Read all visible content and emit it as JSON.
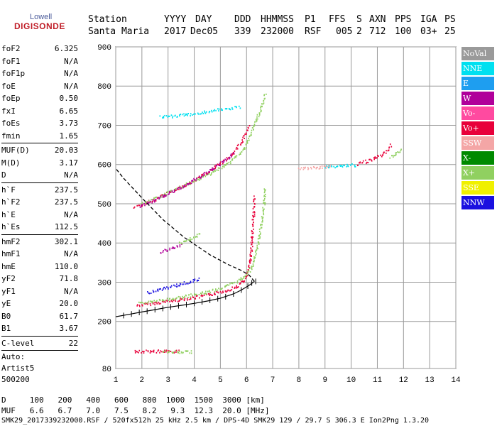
{
  "logo": {
    "brand": "Lowell",
    "product": "DIGISONDE"
  },
  "header": {
    "labels": [
      "Station",
      "YYYY",
      "DAY",
      "DDD",
      "HHMMSS",
      "P1",
      "FFS",
      "S",
      "AXN",
      "PPS",
      "IGA",
      "PS"
    ],
    "values": [
      "Santa Maria",
      "2017",
      "Dec05",
      "339",
      "232000",
      "RSF",
      "005",
      "2",
      "712",
      "100",
      "03+",
      "25"
    ]
  },
  "params_groups": [
    [
      [
        "foF2",
        "6.325"
      ],
      [
        "foF1",
        "N/A"
      ],
      [
        "foF1p",
        "N/A"
      ],
      [
        "foE",
        "N/A"
      ],
      [
        "foEp",
        "0.50"
      ],
      [
        "fxI",
        "6.65"
      ],
      [
        "foEs",
        "3.73"
      ],
      [
        "fmin",
        "1.65"
      ]
    ],
    [
      [
        "MUF(D)",
        "20.03"
      ],
      [
        "M(D)",
        "3.17"
      ],
      [
        "D",
        "N/A"
      ]
    ],
    [
      [
        "h`F",
        "237.5"
      ],
      [
        "h`F2",
        "237.5"
      ],
      [
        "h`E",
        "N/A"
      ],
      [
        "h`Es",
        "112.5"
      ]
    ],
    [
      [
        "hmF2",
        "302.1"
      ],
      [
        "hmF1",
        "N/A"
      ],
      [
        "hmE",
        "110.0"
      ],
      [
        "yF2",
        "71.8"
      ],
      [
        "yF1",
        "N/A"
      ],
      [
        "yE",
        "20.0"
      ],
      [
        "B0",
        "61.7"
      ],
      [
        "B1",
        "3.67"
      ]
    ],
    [
      [
        "C-level",
        "22"
      ]
    ]
  ],
  "auto": {
    "line1": "Auto:",
    "line2": "Artist5",
    "line3": "500200"
  },
  "legend": [
    {
      "label": "NoVal",
      "color": "#9a9a9a"
    },
    {
      "label": "NNE",
      "color": "#00e0f0"
    },
    {
      "label": "E",
      "color": "#1e9ef0"
    },
    {
      "label": "W",
      "color": "#b0009a"
    },
    {
      "label": "Vo-",
      "color": "#ff4aa0"
    },
    {
      "label": "Vo+",
      "color": "#e8003a"
    },
    {
      "label": "SSW",
      "color": "#f4a6a6"
    },
    {
      "label": "X-",
      "color": "#008a00"
    },
    {
      "label": "X+",
      "color": "#90d060"
    },
    {
      "label": "SSE",
      "color": "#f0f000"
    },
    {
      "label": "NNW",
      "color": "#1a10e0"
    }
  ],
  "footer": {
    "row1_label": "D",
    "row1_values": [
      "100",
      "200",
      "400",
      "600",
      "800",
      "1000",
      "1500",
      "3000"
    ],
    "row1_unit": "[km]",
    "row2_label": "MUF",
    "row2_values": [
      "6.6",
      "6.7",
      "7.0",
      "7.5",
      "8.2",
      "9.3",
      "12.3",
      "20.0"
    ],
    "row2_unit": "[MHz]",
    "info": "SMK29_2017339232000.RSF / 520fx512h 25 kHz 2.5 km / DPS-4D SMK29 129 / 29.7 S 306.3 E Ion2Png 1.3.20"
  },
  "chart_data": {
    "type": "scatter",
    "title": "",
    "xlabel": "",
    "ylabel": "",
    "xlim": [
      1,
      14
    ],
    "ylim": [
      80,
      900
    ],
    "x_ticks": [
      1,
      2,
      3,
      4,
      5,
      6,
      7,
      8,
      9,
      10,
      11,
      12,
      13,
      14
    ],
    "y_ticks": [
      80,
      200,
      300,
      400,
      500,
      600,
      700,
      800,
      900
    ],
    "grid": true,
    "series": [
      {
        "color": "#e8003a",
        "points": [
          [
            1.8,
            242
          ],
          [
            2.5,
            248
          ],
          [
            3.2,
            255
          ],
          [
            4,
            262
          ],
          [
            4.6,
            270
          ],
          [
            5.2,
            280
          ],
          [
            5.6,
            290
          ],
          [
            5.9,
            305
          ],
          [
            6.05,
            330
          ],
          [
            6.15,
            370
          ],
          [
            6.2,
            420
          ],
          [
            6.25,
            470
          ],
          [
            6.3,
            520
          ]
        ]
      },
      {
        "color": "#90d060",
        "points": [
          [
            1.9,
            248
          ],
          [
            2.8,
            256
          ],
          [
            3.6,
            264
          ],
          [
            4.4,
            275
          ],
          [
            5.2,
            290
          ],
          [
            5.8,
            310
          ],
          [
            6.2,
            340
          ],
          [
            6.4,
            390
          ],
          [
            6.55,
            450
          ],
          [
            6.65,
            500
          ],
          [
            6.7,
            540
          ]
        ]
      },
      {
        "color": "#1a10e0",
        "points": [
          [
            2.2,
            275
          ],
          [
            2.8,
            285
          ],
          [
            3.4,
            295
          ],
          [
            4.2,
            310
          ]
        ]
      },
      {
        "color": "#e8003a",
        "points": [
          [
            1.7,
            491
          ],
          [
            2.4,
            510
          ],
          [
            3.2,
            535
          ],
          [
            4,
            560
          ],
          [
            4.8,
            595
          ],
          [
            5.4,
            625
          ],
          [
            5.8,
            660
          ],
          [
            6.1,
            700
          ]
        ]
      },
      {
        "color": "#90d060",
        "points": [
          [
            2.0,
            500
          ],
          [
            3.0,
            530
          ],
          [
            4.2,
            565
          ],
          [
            5.2,
            600
          ],
          [
            5.9,
            640
          ],
          [
            6.4,
            720
          ],
          [
            6.7,
            780
          ]
        ]
      },
      {
        "color": "#b0009a",
        "points": [
          [
            1.9,
            495
          ],
          [
            2.8,
            520
          ],
          [
            3.8,
            555
          ],
          [
            4.7,
            590
          ],
          [
            5.5,
            630
          ]
        ]
      },
      {
        "color": "#00e0f0",
        "points": [
          [
            2.7,
            722
          ],
          [
            3.7,
            728
          ],
          [
            4.7,
            738
          ],
          [
            5.7,
            748
          ]
        ]
      },
      {
        "color": "#f4a6a6",
        "points": [
          [
            8.0,
            590
          ],
          [
            8.6,
            593
          ],
          [
            9.2,
            596
          ]
        ]
      },
      {
        "color": "#00e0f0",
        "points": [
          [
            9.0,
            596
          ],
          [
            9.6,
            598
          ],
          [
            10.2,
            600
          ]
        ]
      },
      {
        "color": "#e8003a",
        "points": [
          [
            10.2,
            602
          ],
          [
            10.6,
            610
          ],
          [
            10.9,
            618
          ],
          [
            11.2,
            628
          ],
          [
            11.4,
            640
          ],
          [
            11.5,
            650
          ]
        ]
      },
      {
        "color": "#90d060",
        "points": [
          [
            11.5,
            620
          ],
          [
            11.7,
            630
          ],
          [
            11.9,
            640
          ]
        ]
      },
      {
        "color": "#b0009a",
        "points": [
          [
            2.7,
            378
          ],
          [
            3.1,
            388
          ],
          [
            3.5,
            398
          ]
        ]
      },
      {
        "color": "#90d060",
        "points": [
          [
            3.4,
            400
          ],
          [
            3.8,
            410
          ],
          [
            4.2,
            425
          ]
        ]
      },
      {
        "color": "#e8003a",
        "points": [
          [
            1.7,
            125
          ],
          [
            2.3,
            125
          ],
          [
            3.0,
            125
          ],
          [
            3.4,
            125
          ]
        ]
      },
      {
        "color": "#90d060",
        "points": [
          [
            2.8,
            124
          ],
          [
            3.4,
            124
          ],
          [
            3.9,
            124
          ]
        ]
      }
    ],
    "profile": [
      [
        1.0,
        212
      ],
      [
        1.5,
        218
      ],
      [
        2.0,
        224
      ],
      [
        2.5,
        230
      ],
      [
        3.0,
        236
      ],
      [
        3.5,
        241
      ],
      [
        4.0,
        246
      ],
      [
        4.5,
        252
      ],
      [
        5.0,
        259
      ],
      [
        5.5,
        270
      ],
      [
        5.8,
        280
      ],
      [
        6.1,
        292
      ],
      [
        6.3,
        302.1
      ],
      [
        6.1,
        318
      ],
      [
        5.8,
        330
      ],
      [
        5.3,
        345
      ],
      [
        4.6,
        370
      ],
      [
        3.6,
        415
      ],
      [
        2.8,
        460
      ],
      [
        2.0,
        515
      ],
      [
        1.3,
        565
      ],
      [
        1.0,
        590
      ]
    ],
    "profile_marks": [
      [
        1.3,
        215
      ],
      [
        1.6,
        219
      ],
      [
        1.9,
        223
      ],
      [
        2.2,
        226
      ],
      [
        2.5,
        230
      ],
      [
        2.8,
        233
      ],
      [
        3.1,
        237
      ],
      [
        3.4,
        240
      ],
      [
        3.7,
        243
      ],
      [
        4.0,
        246
      ],
      [
        4.3,
        250
      ],
      [
        4.6,
        254
      ],
      [
        4.9,
        258
      ],
      [
        5.2,
        263
      ],
      [
        5.5,
        270
      ],
      [
        5.8,
        280
      ],
      [
        6.05,
        290
      ],
      [
        6.2,
        298
      ],
      [
        6.35,
        302
      ]
    ]
  }
}
